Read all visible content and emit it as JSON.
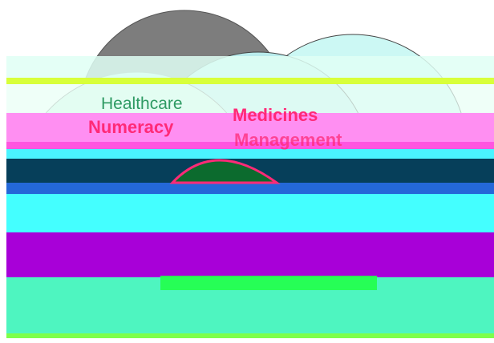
{
  "labels": {
    "healthcare": "Healthcare",
    "numeracy": "Numeracy",
    "medicines": "Medicines",
    "management": "Management"
  },
  "colors": {
    "label_pink": "#ff2a77",
    "label_green": "#2e9a63",
    "circle_dark": "#7a7a7a",
    "glitch_pink": "#ff7ff0",
    "glitch_cyan": "#44ffff",
    "glitch_purple": "#a800d8",
    "glitch_mint": "#4ef5c0",
    "glitch_navy": "#063f5a",
    "glitch_lime": "#d8ff3a"
  }
}
